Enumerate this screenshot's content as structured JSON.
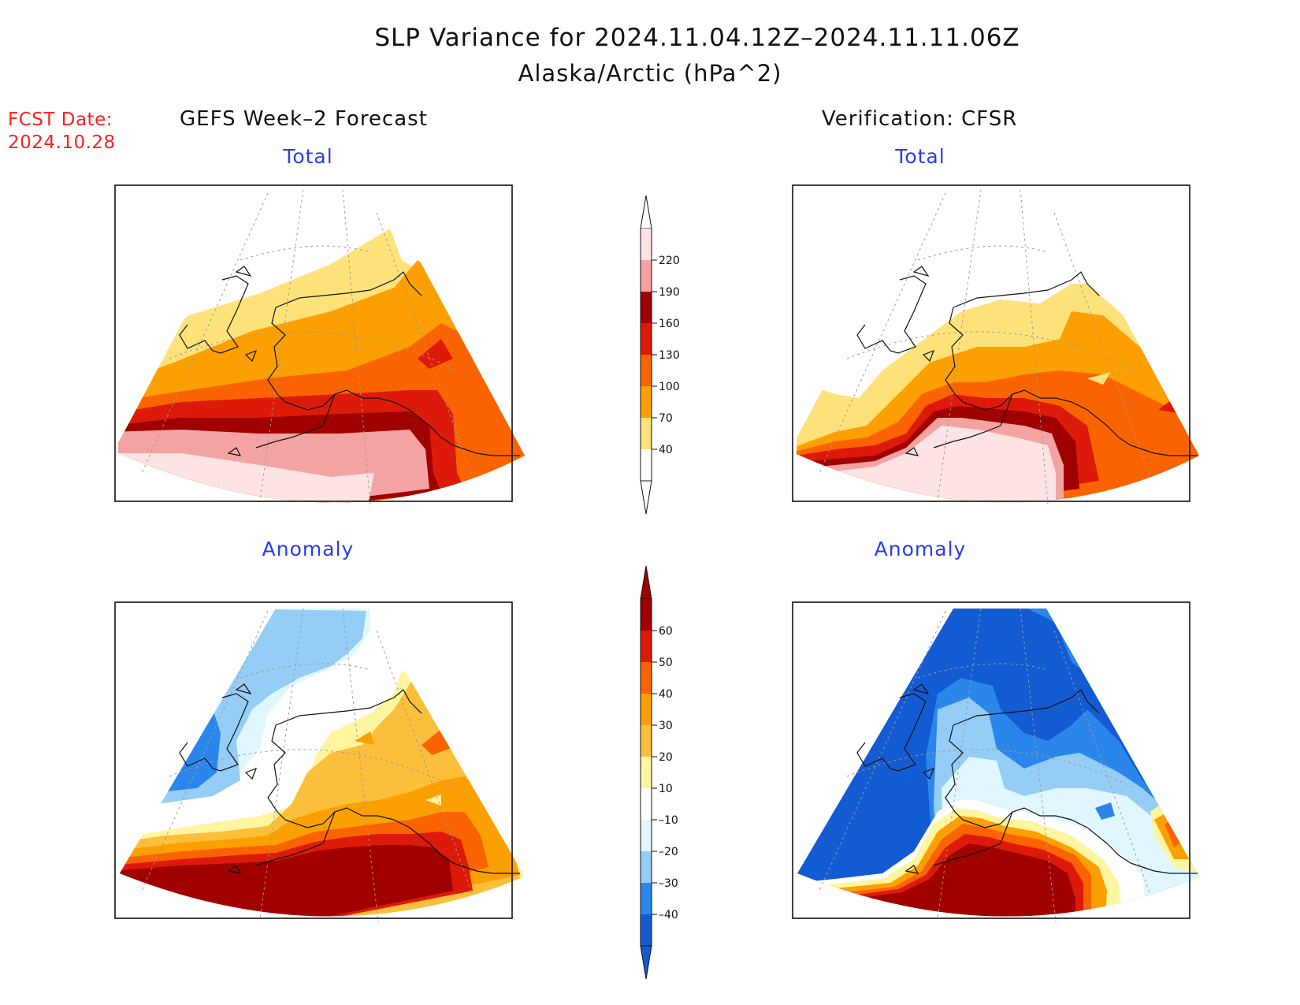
{
  "title": "SLP Variance for 2024.11.04.12Z–2024.11.11.06Z",
  "subtitle": "Alaska/Arctic (hPa^2)",
  "fcst_date": {
    "label": "FCST Date:",
    "value": "2024.10.28"
  },
  "columns": {
    "left": "GEFS Week–2 Forecast",
    "right": "Verification: CFSR"
  },
  "panels": {
    "gefs_total": "Total",
    "cfsr_total": "Total",
    "gefs_anomaly": "Anomaly",
    "cfsr_anomaly": "Anomaly"
  },
  "total_colorbar": {
    "ticks": [
      "220",
      "190",
      "160",
      "130",
      "100",
      "70",
      "40"
    ],
    "colors": [
      "#fde3e3",
      "#f4a3a3",
      "#a00000",
      "#dd1a0a",
      "#fa6400",
      "#fba000",
      "#fde27a",
      "#ffffff"
    ]
  },
  "anomaly_colorbar": {
    "ticks": [
      "60",
      "50",
      "40",
      "30",
      "20",
      "10",
      "–10",
      "–20",
      "–30",
      "–40"
    ],
    "colors": [
      "#a00000",
      "#dd1a0a",
      "#fa6400",
      "#fba000",
      "#fbbf3c",
      "#fdf5a0",
      "#ffffff",
      "#e0f7ff",
      "#95cdf6",
      "#2a86ea",
      "#135bd2"
    ]
  }
}
